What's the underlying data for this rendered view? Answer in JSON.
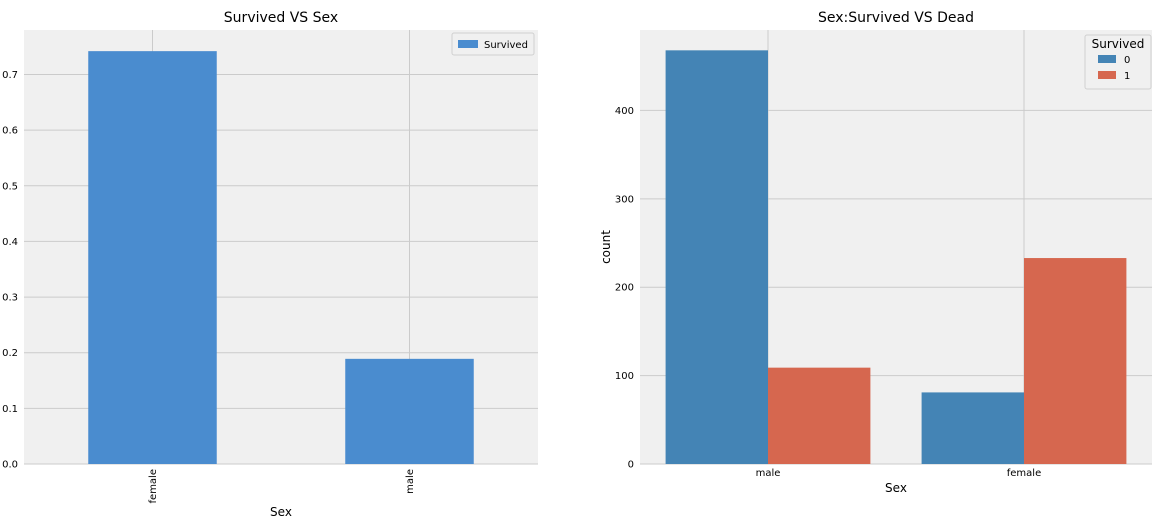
{
  "chart_data": [
    {
      "type": "bar",
      "title": "Survived VS Sex",
      "xlabel": "Sex",
      "ylabel": "",
      "categories": [
        "female",
        "male"
      ],
      "series": [
        {
          "name": "Survived",
          "values": [
            0.742,
            0.189
          ],
          "color": "#4a8ccf"
        }
      ],
      "ylim": [
        0,
        0.78
      ],
      "yticks": [
        0.0,
        0.1,
        0.2,
        0.3,
        0.4,
        0.5,
        0.6,
        0.7
      ],
      "ytick_labels": [
        "0.0",
        "0.1",
        "0.2",
        "0.3",
        "0.4",
        "0.5",
        "0.6",
        "0.7"
      ],
      "legend": {
        "position": "top-right",
        "title": ""
      },
      "grid": true,
      "xtick_rotation": "vertical"
    },
    {
      "type": "bar",
      "title": "Sex:Survived VS Dead",
      "xlabel": "Sex",
      "ylabel": "count",
      "categories": [
        "male",
        "female"
      ],
      "series": [
        {
          "name": "0",
          "values": [
            468,
            81
          ],
          "color": "#4484b5"
        },
        {
          "name": "1",
          "values": [
            109,
            233
          ],
          "color": "#d6674f"
        }
      ],
      "ylim": [
        0,
        491
      ],
      "yticks": [
        0,
        100,
        200,
        300,
        400
      ],
      "ytick_labels": [
        "0",
        "100",
        "200",
        "300",
        "400"
      ],
      "legend": {
        "position": "top-right",
        "title": "Survived"
      },
      "grid": true,
      "xtick_rotation": "horizontal"
    }
  ],
  "colors": {
    "plot_bg": "#f0f0f0",
    "grid": "#cbcbcb",
    "page_bg": "#ffffff"
  }
}
